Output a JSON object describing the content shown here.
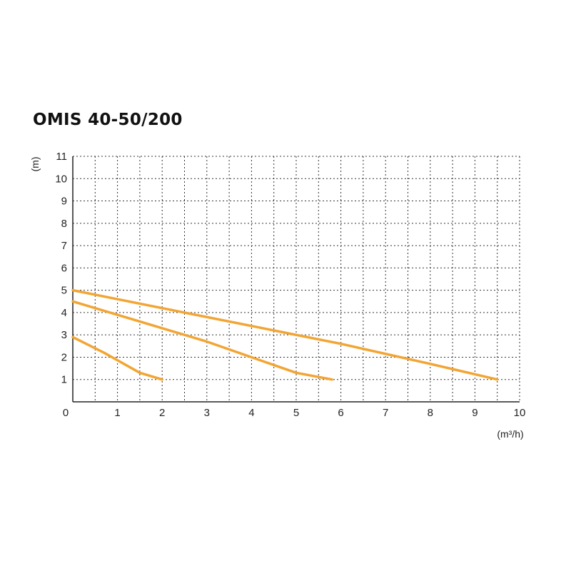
{
  "chart_data": {
    "type": "line",
    "title": "OMIS 40-50/200",
    "xlabel": "(m³/h)",
    "ylabel": "(m)",
    "xlim": [
      0,
      10
    ],
    "ylim": [
      0,
      11
    ],
    "x_ticks": [
      "0",
      "1",
      "2",
      "3",
      "4",
      "5",
      "6",
      "7",
      "8",
      "9",
      "10"
    ],
    "y_ticks": [
      "1",
      "2",
      "3",
      "4",
      "5",
      "6",
      "7",
      "8",
      "9",
      "10",
      "11"
    ],
    "grid": true,
    "grid_style": "dotted",
    "line_color": "#f2a533",
    "series": [
      {
        "points": [
          [
            0,
            2.9
          ],
          [
            0.7,
            2.2
          ],
          [
            1.5,
            1.3
          ],
          [
            2.0,
            1.0
          ]
        ]
      },
      {
        "points": [
          [
            0,
            4.5
          ],
          [
            1.5,
            3.6
          ],
          [
            3.0,
            2.7
          ],
          [
            4.0,
            2.0
          ],
          [
            5.0,
            1.3
          ],
          [
            5.8,
            1.0
          ]
        ]
      },
      {
        "points": [
          [
            0,
            5.0
          ],
          [
            2.0,
            4.2
          ],
          [
            4.0,
            3.4
          ],
          [
            6.0,
            2.6
          ],
          [
            8.0,
            1.7
          ],
          [
            9.5,
            1.0
          ]
        ]
      }
    ]
  }
}
